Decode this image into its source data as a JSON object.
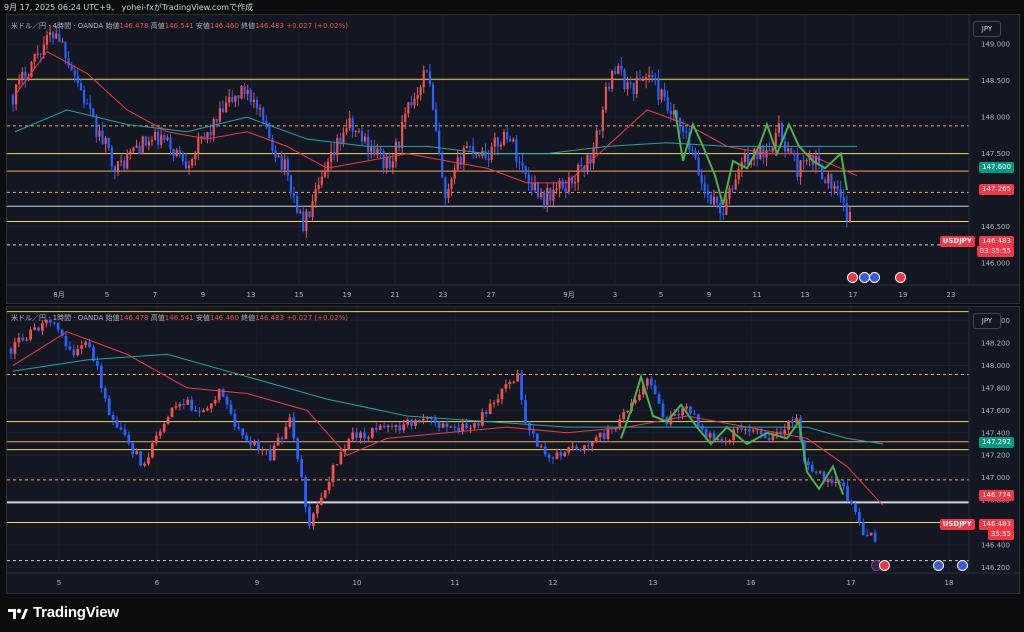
{
  "header": {
    "text": "9月 17, 2025 06:24 UTC+9、 yohei-fxがTradingView.comで作成"
  },
  "top": {
    "legend": {
      "symbol": "米ドル／円 · 4時間 · OANDA",
      "o_label": "始値",
      "o": "146.478",
      "h_label": "高値",
      "h": "146.541",
      "l_label": "安値",
      "l": "146.460",
      "c_label": "終値",
      "c": "146.483",
      "chg": "+0.027 (+0.02%)"
    },
    "currency": "JPY",
    "yticks": [
      "149.000",
      "148.500",
      "148.000",
      "147.500",
      "147.000",
      "146.500",
      "146.000"
    ],
    "xticks": [
      "8月",
      "5",
      "7",
      "9",
      "13",
      "15",
      "19",
      "21",
      "23",
      "27",
      "9月",
      "3",
      "5",
      "9",
      "11",
      "13",
      "17",
      "19",
      "23"
    ],
    "tags": {
      "teal": "147.600",
      "red": "147.265",
      "sym": "USDJPY",
      "price": "146.483",
      "timer": "03:35:55"
    },
    "colors": {
      "hline": "#f0d94a",
      "dashed_orange": "#f7a35c",
      "ma_red": "#f23645",
      "ma_teal": "#22a3a3"
    }
  },
  "bottom": {
    "legend": {
      "symbol": "米ドル／円 · 1時間 · OANDA",
      "o_label": "始値",
      "o": "146.478",
      "h_label": "高値",
      "h": "146.541",
      "l_label": "安値",
      "l": "146.460",
      "c_label": "終値",
      "c": "146.483",
      "chg": "+0.027 (+0.02%)"
    },
    "currency": "JPY",
    "yticks": [
      "148.400",
      "148.200",
      "148.000",
      "147.800",
      "147.600",
      "147.400",
      "147.200",
      "147.000",
      "146.800",
      "146.600",
      "146.400",
      "146.200"
    ],
    "xticks": [
      "5",
      "6",
      "9",
      "10",
      "11",
      "12",
      "13",
      "16",
      "17",
      "18"
    ],
    "tags": {
      "teal": "147.292",
      "red": "146.774",
      "sym": "USDJPY",
      "price": "146.483",
      "timer": "35:55"
    }
  },
  "footer": {
    "brand": "TradingView"
  }
}
